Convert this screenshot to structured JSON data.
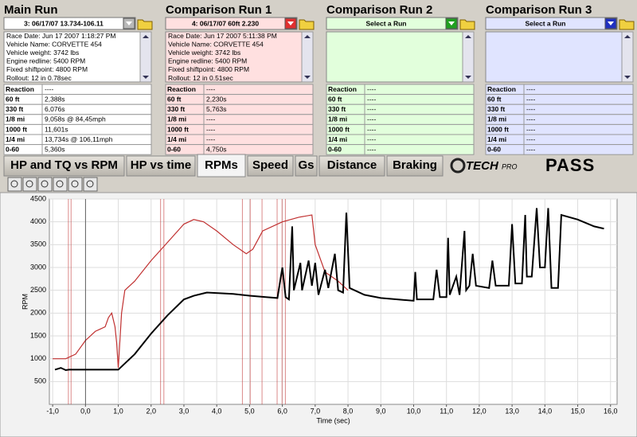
{
  "panels": [
    {
      "title": "Main Run",
      "selector": "3:  06/17/07 13.734-106.11",
      "color": "#b8b8b8",
      "tint": "#ffffff",
      "info": [
        "Race Date: Jun 17 2007  1:18:27 PM",
        "Vehicle Name: CORVETTE 454",
        "Vehicle weight: 3742 lbs",
        "Engine redline: 5400 RPM",
        "Fixed shiftpoint: 4800 RPM",
        "Rollout: 12 in  0.78sec"
      ],
      "results": [
        [
          "Reaction",
          "----"
        ],
        [
          "60 ft",
          "2,388s"
        ],
        [
          "330 ft",
          "6,076s"
        ],
        [
          "1/8 mi",
          "9,058s @ 84,45mph"
        ],
        [
          "1000 ft",
          "11,601s"
        ],
        [
          "1/4 mi",
          "13,734s @ 106,11mph"
        ],
        [
          "0-60",
          "5,360s"
        ]
      ]
    },
    {
      "title": "Comparison Run 1",
      "selector": "4:  06/17/07 60ft 2.230",
      "color": "#e03030",
      "tint": "#ffe0e0",
      "info": [
        "Race Date: Jun 17 2007  5:11:38 PM",
        "Vehicle Name: CORVETTE 454",
        "Vehicle weight: 3742 lbs",
        "Engine redline: 5400 RPM",
        "Fixed shiftpoint: 4800 RPM",
        "Rollout: 12 in  0.51sec"
      ],
      "results": [
        [
          "Reaction",
          "----"
        ],
        [
          "60 ft",
          "2,230s"
        ],
        [
          "330 ft",
          "5,763s"
        ],
        [
          "1/8 mi",
          "----"
        ],
        [
          "1000 ft",
          "----"
        ],
        [
          "1/4 mi",
          "----"
        ],
        [
          "0-60",
          "4,750s"
        ]
      ]
    },
    {
      "title": "Comparison Run 2",
      "selector": "Select a Run",
      "color": "#20a020",
      "tint": "#e2ffdc",
      "info": [],
      "results": [
        [
          "Reaction",
          "----"
        ],
        [
          "60 ft",
          "----"
        ],
        [
          "330 ft",
          "----"
        ],
        [
          "1/8 mi",
          "----"
        ],
        [
          "1000 ft",
          "----"
        ],
        [
          "1/4 mi",
          "----"
        ],
        [
          "0-60",
          "----"
        ]
      ]
    },
    {
      "title": "Comparison Run 3",
      "selector": "Select a Run",
      "color": "#2030c0",
      "tint": "#e0e4ff",
      "info": [],
      "results": [
        [
          "Reaction",
          "----"
        ],
        [
          "60 ft",
          "----"
        ],
        [
          "330 ft",
          "----"
        ],
        [
          "1/8 mi",
          "----"
        ],
        [
          "1000 ft",
          "----"
        ],
        [
          "1/4 mi",
          "----"
        ],
        [
          "0-60",
          "----"
        ]
      ]
    }
  ],
  "tabs": [
    "HP and TQ vs RPM",
    "HP vs time",
    "RPMs",
    "Speed",
    "Gs",
    "Distance",
    "Braking"
  ],
  "selected_tab": 2,
  "brand": {
    "mark": "TECH",
    "sub": "PRO",
    "product": "PASS"
  },
  "chart_data": {
    "type": "line",
    "x_label": "Time (sec)",
    "y_label": "RPM",
    "xlim": [
      -1.1,
      16.2
    ],
    "ylim": [
      0,
      4500
    ],
    "grid": true,
    "xticks": [
      {
        "value": -1,
        "label": "-1,0"
      },
      {
        "value": 0,
        "label": "0,0"
      },
      {
        "value": 1,
        "label": "1,0"
      },
      {
        "value": 2,
        "label": "2,0"
      },
      {
        "value": 3,
        "label": "3,0"
      },
      {
        "value": 4,
        "label": "4,0"
      },
      {
        "value": 5,
        "label": "5,0"
      },
      {
        "value": 6,
        "label": "6,0"
      },
      {
        "value": 7,
        "label": "7,0"
      },
      {
        "value": 8,
        "label": "8,0"
      },
      {
        "value": 9,
        "label": "9,0"
      },
      {
        "value": 10,
        "label": "10,0"
      },
      {
        "value": 11,
        "label": "11,0"
      },
      {
        "value": 12,
        "label": "12,0"
      },
      {
        "value": 13,
        "label": "13,0"
      },
      {
        "value": 14,
        "label": "14,0"
      },
      {
        "value": 15,
        "label": "15,0"
      },
      {
        "value": 16,
        "label": "16,0"
      }
    ],
    "yticks": [
      500,
      1000,
      1500,
      2000,
      2500,
      3000,
      3500,
      4000,
      4500
    ],
    "series": [
      {
        "color": "#c03030",
        "event_x": [
          -0.52,
          -0.44,
          2.29,
          2.39,
          4.78,
          5.02,
          5.38,
          5.84,
          5.99,
          6.09
        ],
        "x": [
          -1.0,
          -0.6,
          -0.3,
          0.0,
          0.3,
          0.6,
          0.7,
          0.8,
          0.9,
          0.95,
          1.0,
          1.1,
          1.2,
          1.5,
          2.0,
          2.5,
          3.0,
          3.3,
          3.6,
          4.0,
          4.5,
          4.9,
          5.1,
          5.4,
          6.0,
          6.5,
          6.9,
          7.0,
          7.3,
          7.7,
          8.0
        ],
        "values": [
          1000,
          1000,
          1100,
          1400,
          1600,
          1700,
          1900,
          2000,
          1700,
          1350,
          800,
          2000,
          2500,
          2700,
          3150,
          3550,
          3950,
          4050,
          4000,
          3800,
          3500,
          3300,
          3400,
          3800,
          4000,
          4100,
          4150,
          3500,
          2900,
          2700,
          2500
        ]
      },
      {
        "color": "#000000",
        "event_x": [
          0.0
        ],
        "x": [
          -0.93,
          -0.75,
          -0.6,
          -0.5,
          0.0,
          1.0,
          1.5,
          2.0,
          2.5,
          3.0,
          3.3,
          3.7,
          4.5,
          5.0,
          5.5,
          5.85,
          6.0,
          6.1,
          6.2,
          6.3,
          6.35,
          6.55,
          6.6,
          6.8,
          6.9,
          7.0,
          7.1,
          7.3,
          7.4,
          7.6,
          7.7,
          7.85,
          7.95,
          8.05,
          8.5,
          9.0,
          9.5,
          10.0,
          10.05,
          10.1,
          10.6,
          10.7,
          10.8,
          11.0,
          11.05,
          11.1,
          11.3,
          11.4,
          11.55,
          11.6,
          11.7,
          11.8,
          11.9,
          12.3,
          12.4,
          12.5,
          12.9,
          13.0,
          13.1,
          13.3,
          13.4,
          13.45,
          13.6,
          13.75,
          13.85,
          14.0,
          14.1,
          14.2,
          14.4,
          14.5,
          15.0,
          15.5,
          15.8
        ],
        "values": [
          760,
          800,
          750,
          760,
          760,
          760,
          1100,
          1550,
          1950,
          2300,
          2380,
          2450,
          2420,
          2380,
          2350,
          2330,
          3000,
          2350,
          2300,
          3900,
          2500,
          3100,
          2500,
          3150,
          2600,
          3100,
          2400,
          2950,
          2550,
          3300,
          2500,
          2450,
          4200,
          2550,
          2400,
          2330,
          2300,
          2270,
          2900,
          2300,
          2300,
          2950,
          2350,
          2350,
          3650,
          2400,
          2800,
          2400,
          3800,
          2500,
          2600,
          3300,
          2600,
          2550,
          3150,
          2600,
          2600,
          3950,
          2650,
          2650,
          4150,
          2800,
          2800,
          4300,
          3000,
          3000,
          4300,
          2550,
          2550,
          4150,
          4050,
          3900,
          3850
        ]
      }
    ]
  }
}
